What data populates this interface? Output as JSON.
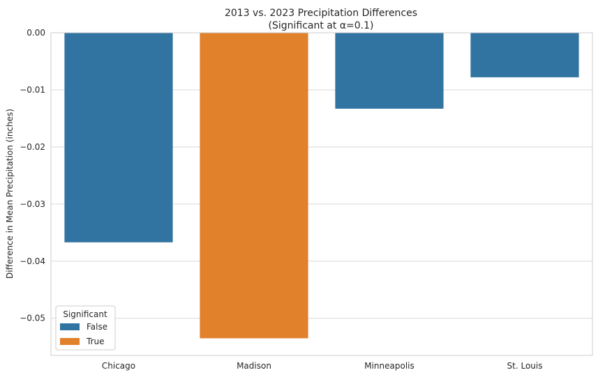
{
  "chart_data": {
    "type": "bar",
    "title_line1": "2013 vs. 2023 Precipitation Differences",
    "title_line2": "(Significant at α=0.1)",
    "xlabel": "",
    "ylabel": "Difference in Mean Precipitation (inches)",
    "ylim": [
      -0.0565,
      0.0
    ],
    "yticks": [
      0.0,
      -0.01,
      -0.02,
      -0.03,
      -0.04,
      -0.05
    ],
    "ytick_labels": [
      "0.00",
      "−0.01",
      "−0.02",
      "−0.03",
      "−0.04",
      "−0.05"
    ],
    "grid": true,
    "categories": [
      "Chicago",
      "Madison",
      "Minneapolis",
      "St. Louis"
    ],
    "values": [
      -0.0367,
      -0.0535,
      -0.0133,
      -0.0078
    ],
    "significant": [
      false,
      true,
      false,
      false
    ],
    "legend": {
      "title": "Significant",
      "placement": "lower-left",
      "entries": [
        {
          "label": "False",
          "color": "#3274a1"
        },
        {
          "label": "True",
          "color": "#e1812c"
        }
      ]
    },
    "colors": {
      "False": "#3274a1",
      "True": "#e1812c"
    }
  }
}
